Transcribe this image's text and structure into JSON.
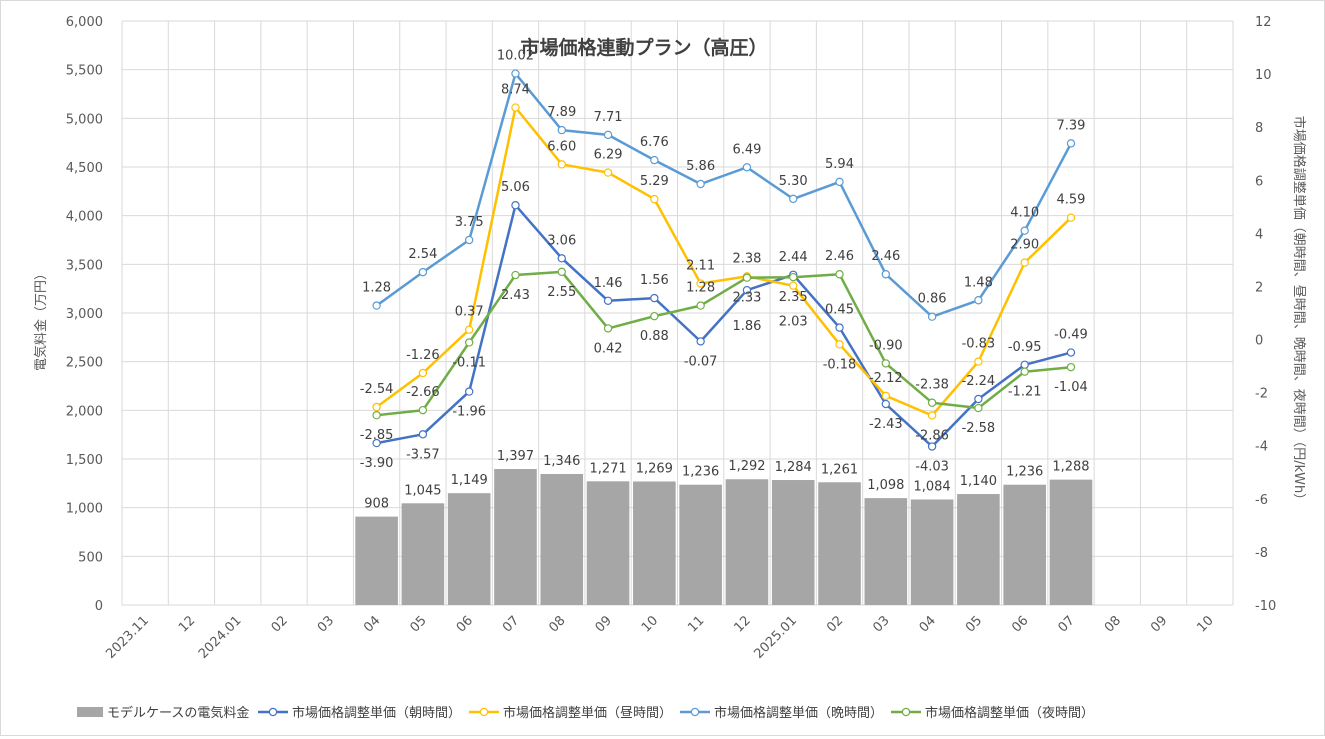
{
  "chart_data": {
    "type": "bar",
    "title": "市場価格連動プラン（高圧）",
    "ylabel_left": "電気料金（万円）",
    "ylabel_right": "市場価格調整単価（朝時間、昼時間、晩時間、夜時間）（円/kWh）",
    "ylim_left": [
      0,
      6000
    ],
    "yticks_left": [
      "0",
      "500",
      "1,000",
      "1,500",
      "2,000",
      "2,500",
      "3,000",
      "3,500",
      "4,000",
      "4,500",
      "5,000",
      "5,500",
      "6,000"
    ],
    "ylim_right": [
      -10,
      12
    ],
    "yticks_right": [
      "-10",
      "-8",
      "-6",
      "-4",
      "-2",
      "0",
      "2",
      "4",
      "6",
      "8",
      "10",
      "12"
    ],
    "categories": [
      "2023.11",
      "12",
      "2024.01",
      "02",
      "03",
      "04",
      "05",
      "06",
      "07",
      "08",
      "09",
      "10",
      "11",
      "12",
      "2025.01",
      "02",
      "03",
      "04",
      "05",
      "06",
      "07",
      "08",
      "09",
      "10"
    ],
    "grid": true,
    "legend_position": "bottom",
    "series": [
      {
        "name": "モデルケースの電気料金",
        "kind": "bar",
        "axis": "left",
        "color": "#a6a6a6",
        "values": [
          null,
          null,
          null,
          null,
          null,
          908,
          1045,
          1149,
          1397,
          1346,
          1271,
          1269,
          1236,
          1292,
          1284,
          1261,
          1098,
          1084,
          1140,
          1236,
          1288,
          null,
          null,
          null
        ],
        "labels": [
          null,
          null,
          null,
          null,
          null,
          "908",
          "1,045",
          "1,149",
          "1,397",
          "1,346",
          "1,271",
          "1,269",
          "1,236",
          "1,292",
          "1,284",
          "1,261",
          "1,098",
          "1,084",
          "1,140",
          "1,236",
          "1,288",
          null,
          null,
          null
        ]
      },
      {
        "name": "市場価格調整単価（朝時間）",
        "kind": "line",
        "axis": "right",
        "color": "#4472c4",
        "values": [
          null,
          null,
          null,
          null,
          null,
          -3.9,
          -3.57,
          -1.96,
          5.06,
          3.06,
          1.46,
          1.56,
          -0.07,
          1.86,
          2.44,
          0.45,
          -2.43,
          -4.03,
          -2.24,
          -0.95,
          -0.49,
          null,
          null,
          null
        ],
        "labels": [
          null,
          null,
          null,
          null,
          null,
          "-3.90",
          "-3.57",
          "-1.96",
          "5.06",
          "3.06",
          "1.46",
          "1.56",
          "-0.07",
          "1.86",
          "2.44",
          "0.45",
          "-2.43",
          "-4.03",
          "-2.24",
          "-0.95",
          "-0.49",
          null,
          null,
          null
        ]
      },
      {
        "name": "市場価格調整単価（昼時間）",
        "kind": "line",
        "axis": "right",
        "color": "#ffc000",
        "values": [
          null,
          null,
          null,
          null,
          null,
          -2.54,
          -1.26,
          0.37,
          8.74,
          6.6,
          6.29,
          5.29,
          2.11,
          2.38,
          2.03,
          -0.18,
          -2.12,
          -2.86,
          -0.83,
          2.9,
          4.59,
          null,
          null,
          null
        ],
        "labels": [
          null,
          null,
          null,
          null,
          null,
          "-2.54",
          "-1.26",
          "0.37",
          "8.74",
          "6.60",
          "6.29",
          "5.29",
          "2.11",
          "2.38",
          "2.03",
          "-0.18",
          "-2.12",
          "-2.86",
          "-0.83",
          "2.90",
          "4.59",
          null,
          null,
          null
        ]
      },
      {
        "name": "市場価格調整単価（晩時間）",
        "kind": "line",
        "axis": "right",
        "color": "#5b9bd5",
        "values": [
          null,
          null,
          null,
          null,
          null,
          1.28,
          2.54,
          3.75,
          10.02,
          7.89,
          7.71,
          6.76,
          5.86,
          6.49,
          5.3,
          5.94,
          2.46,
          0.86,
          1.48,
          4.1,
          7.39,
          null,
          null,
          null
        ],
        "labels": [
          null,
          null,
          null,
          null,
          null,
          "1.28",
          "2.54",
          "3.75",
          "10.02",
          "7.89",
          "7.71",
          "6.76",
          "5.86",
          "6.49",
          "5.30",
          "5.94",
          "2.46",
          "0.86",
          "1.48",
          "4.10",
          "7.39",
          null,
          null,
          null
        ]
      },
      {
        "name": "市場価格調整単価（夜時間）",
        "kind": "line",
        "axis": "right",
        "color": "#70ad47",
        "values": [
          null,
          null,
          null,
          null,
          null,
          -2.85,
          -2.66,
          -0.11,
          2.43,
          2.55,
          0.42,
          0.88,
          1.28,
          2.33,
          2.35,
          2.46,
          -0.9,
          -2.38,
          -2.58,
          -1.21,
          -1.04,
          null,
          null,
          null
        ],
        "labels": [
          null,
          null,
          null,
          null,
          null,
          "-2.85",
          "-2.66",
          "-0.11",
          "2.43",
          "2.55",
          "0.42",
          "0.88",
          "1.28",
          "2.33",
          "2.35",
          "2.46",
          "-0.90",
          "-2.38",
          "-2.58",
          "-1.21",
          "-1.04",
          null,
          null,
          null
        ]
      }
    ]
  }
}
